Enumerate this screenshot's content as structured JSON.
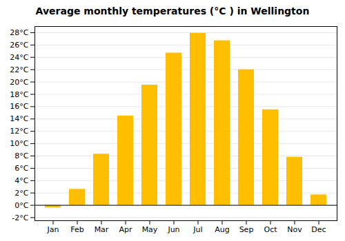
{
  "chart_data": {
    "type": "bar",
    "title": "Average monthly temperatures (°C ) in Wellington",
    "categories": [
      "Jan",
      "Feb",
      "Mar",
      "Apr",
      "May",
      "Jun",
      "Jul",
      "Aug",
      "Sep",
      "Oct",
      "Nov",
      "Dec"
    ],
    "values": [
      -0.4,
      2.6,
      8.3,
      14.5,
      19.5,
      24.7,
      27.9,
      26.7,
      22.0,
      15.5,
      7.8,
      1.7
    ],
    "color": "#FFBE00",
    "ylim": [
      -2.5,
      29
    ],
    "yticks": [
      {
        "value": -2,
        "label": "-2°C"
      },
      {
        "value": 0,
        "label": "0°C"
      },
      {
        "value": 2,
        "label": "2°C"
      },
      {
        "value": 4,
        "label": "4°C"
      },
      {
        "value": 6,
        "label": "6°C"
      },
      {
        "value": 8,
        "label": "8°C"
      },
      {
        "value": 10,
        "label": "10°C"
      },
      {
        "value": 12,
        "label": "12°C"
      },
      {
        "value": 14,
        "label": "14°C"
      },
      {
        "value": 16,
        "label": "16°C"
      },
      {
        "value": 18,
        "label": "18°C"
      },
      {
        "value": 20,
        "label": "20°C"
      },
      {
        "value": 22,
        "label": "22°C"
      },
      {
        "value": 24,
        "label": "24°C"
      },
      {
        "value": 26,
        "label": "26°C"
      },
      {
        "value": 28,
        "label": "28°C"
      }
    ],
    "grid": true
  }
}
